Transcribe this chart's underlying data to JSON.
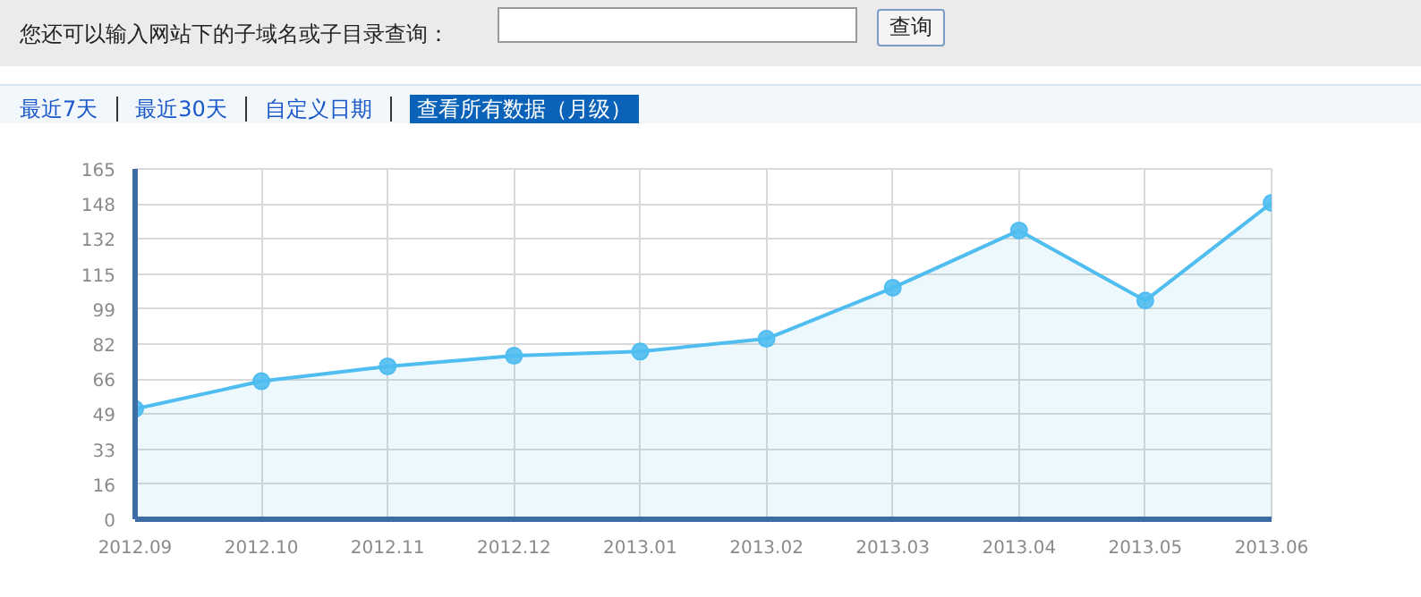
{
  "chart_data": {
    "type": "area",
    "annotations": [
      "您还可以输入网站下的子域名或子目录查询：",
      "查询",
      "最近7天",
      "最近30天",
      "自定义日期",
      "查看所有数据（月级）"
    ],
    "categories": [
      "2012.09",
      "2012.10",
      "2012.11",
      "2012.12",
      "2013.01",
      "2013.02",
      "2013.03",
      "2013.04",
      "2013.05",
      "2013.06"
    ],
    "values": [
      52,
      65,
      72,
      77,
      79,
      85,
      109,
      136,
      103,
      149
    ],
    "color": "#4fbdf0",
    "marker": "circle",
    "ylim": [
      0,
      165
    ],
    "yticks": [
      0,
      {
        "value": 16.5,
        "label": "16"
      },
      33,
      {
        "value": 49.5,
        "label": "49"
      },
      66,
      {
        "value": 82.5,
        "label": "82"
      },
      99,
      {
        "value": 115.5,
        "label": "115"
      },
      132,
      {
        "value": 148.5,
        "label": "148"
      },
      165
    ],
    "grid": true
  }
}
